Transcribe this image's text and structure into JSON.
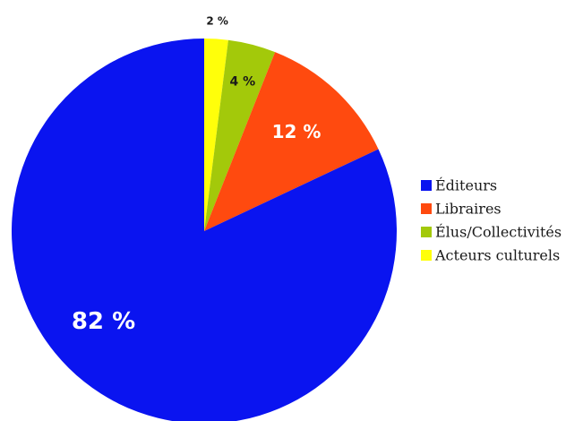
{
  "chart_data": {
    "type": "pie",
    "title": "",
    "slices": [
      {
        "name": "Éditeurs",
        "value": 82,
        "label": "82 %",
        "color": "#0a14f0"
      },
      {
        "name": "Libraires",
        "value": 12,
        "label": "12 %",
        "color": "#ff4a0f"
      },
      {
        "name": "Élus/Collectivités",
        "value": 4,
        "label": "4 %",
        "color": "#a3c90a"
      },
      {
        "name": "Acteurs culturels",
        "value": 2,
        "label": "2 %",
        "color": "#ffff0a"
      }
    ],
    "legend_position": "right",
    "start_angle": "top",
    "direction": "clockwise-from-top, drawn Acteurs culturels, Élus/Collectivités, Libraires, Éditeurs"
  }
}
